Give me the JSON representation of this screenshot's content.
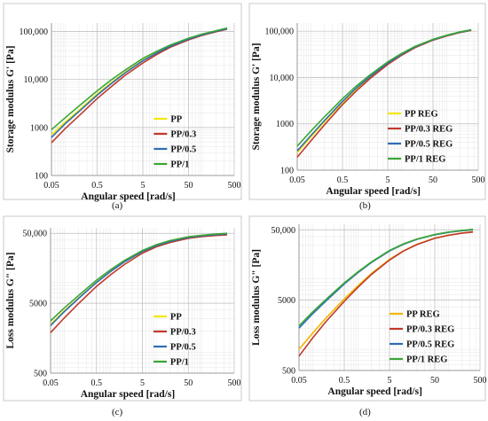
{
  "chart_data": [
    {
      "panel": "(a)",
      "type": "line",
      "xlabel": "Angular speed [rad/s]",
      "ylabel": "Storage modulus G' [Pa]",
      "x_scale": "log",
      "y_scale": "log",
      "xlim": [
        0.05,
        500
      ],
      "ylim": [
        100,
        150000
      ],
      "xticks": [
        "0.05",
        "0.5",
        "5",
        "50",
        "500"
      ],
      "yticks": [
        "100",
        "1000",
        "10,000",
        "100,000"
      ],
      "legend_position": "bottom-right",
      "grid": true,
      "series": [
        {
          "name": "PP",
          "color": "#f2e600",
          "x": [
            0.05,
            0.1,
            0.2,
            0.5,
            1,
            2,
            5,
            10,
            20,
            50,
            100,
            200,
            350
          ],
          "y": [
            700,
            1300,
            2300,
            5000,
            8500,
            14000,
            25000,
            36000,
            50000,
            70000,
            86000,
            102000,
            115000
          ]
        },
        {
          "name": "PP/0.3",
          "color": "#c0392b",
          "x": [
            0.05,
            0.1,
            0.2,
            0.5,
            1,
            2,
            5,
            10,
            20,
            50,
            100,
            200,
            350
          ],
          "y": [
            480,
            950,
            1750,
            4000,
            7000,
            12000,
            22000,
            33000,
            47000,
            67000,
            83000,
            99000,
            112000
          ]
        },
        {
          "name": "PP/0.5",
          "color": "#2e6db4",
          "x": [
            0.05,
            0.1,
            0.2,
            0.5,
            1,
            2,
            5,
            10,
            20,
            50,
            100,
            200,
            350
          ],
          "y": [
            620,
            1200,
            2150,
            4700,
            8100,
            13500,
            24500,
            35500,
            49500,
            69500,
            85500,
            101500,
            114000
          ]
        },
        {
          "name": "PP/1",
          "color": "#3aa635",
          "x": [
            0.05,
            0.1,
            0.2,
            0.5,
            1,
            2,
            5,
            10,
            20,
            50,
            100,
            200,
            350
          ],
          "y": [
            900,
            1600,
            2800,
            5800,
            9700,
            15500,
            27500,
            38500,
            52500,
            72500,
            88500,
            104000,
            118000
          ]
        }
      ]
    },
    {
      "panel": "(b)",
      "type": "line",
      "xlabel": "Angular speed [rad/s]",
      "ylabel": "Storage modulus G' [Pa]",
      "x_scale": "log",
      "y_scale": "log",
      "xlim": [
        0.05,
        500
      ],
      "ylim": [
        100,
        150000
      ],
      "xticks": [
        "0.05",
        "0.5",
        "5",
        "50",
        "500"
      ],
      "yticks": [
        "100",
        "1000",
        "10,000",
        "100,000"
      ],
      "legend_position": "bottom-right",
      "grid": true,
      "series": [
        {
          "name": "PP REG",
          "color": "#f2e600",
          "x": [
            0.05,
            0.1,
            0.2,
            0.5,
            1,
            2,
            5,
            10,
            20,
            50,
            100,
            200,
            350
          ],
          "y": [
            240,
            520,
            1100,
            2900,
            5600,
            10000,
            20000,
            31000,
            45000,
            65000,
            80000,
            95000,
            105000
          ]
        },
        {
          "name": "PP/0.3 REG",
          "color": "#c0392b",
          "x": [
            0.05,
            0.1,
            0.2,
            0.5,
            1,
            2,
            5,
            10,
            20,
            50,
            100,
            200,
            350
          ],
          "y": [
            190,
            430,
            950,
            2600,
            5100,
            9400,
            19200,
            30000,
            44000,
            64000,
            79000,
            94000,
            104000
          ]
        },
        {
          "name": "PP/0.5 REG",
          "color": "#2e6db4",
          "x": [
            0.05,
            0.1,
            0.2,
            0.5,
            1,
            2,
            5,
            10,
            20,
            50,
            100,
            200,
            350
          ],
          "y": [
            260,
            560,
            1180,
            3050,
            5850,
            10400,
            20600,
            31600,
            45600,
            65600,
            80600,
            95600,
            106000
          ]
        },
        {
          "name": "PP/1 REG",
          "color": "#3aa635",
          "x": [
            0.05,
            0.1,
            0.2,
            0.5,
            1,
            2,
            5,
            10,
            20,
            50,
            100,
            200,
            350
          ],
          "y": [
            330,
            700,
            1420,
            3500,
            6500,
            11300,
            21800,
            32800,
            46800,
            66800,
            81800,
            96800,
            108000
          ]
        }
      ]
    },
    {
      "panel": "(c)",
      "type": "line",
      "xlabel": "Angular speed [rad/s]",
      "ylabel": "Loss modulus G\" [Pa]",
      "x_scale": "log",
      "y_scale": "log",
      "xlim": [
        0.05,
        500
      ],
      "ylim": [
        500,
        60000
      ],
      "xticks": [
        "0.05",
        "0.5",
        "5",
        "50",
        "500"
      ],
      "yticks": [
        "500",
        "5000",
        "50,000"
      ],
      "legend_position": "bottom-right",
      "grid": true,
      "series": [
        {
          "name": "PP",
          "color": "#f2e600",
          "x": [
            0.05,
            0.1,
            0.2,
            0.5,
            1,
            2,
            5,
            10,
            20,
            50,
            100,
            200,
            350
          ],
          "y": [
            2500,
            3900,
            5900,
            10000,
            14200,
            19500,
            27500,
            33500,
            38500,
            43500,
            46000,
            47500,
            48500
          ]
        },
        {
          "name": "PP/0.3",
          "color": "#c0392b",
          "x": [
            0.05,
            0.1,
            0.2,
            0.5,
            1,
            2,
            5,
            10,
            20,
            50,
            100,
            200,
            350
          ],
          "y": [
            1900,
            3100,
            4900,
            8700,
            12700,
            17800,
            26000,
            32000,
            37000,
            42500,
            45000,
            46500,
            47500
          ]
        },
        {
          "name": "PP/0.5",
          "color": "#2e6db4",
          "x": [
            0.05,
            0.1,
            0.2,
            0.5,
            1,
            2,
            5,
            10,
            20,
            50,
            100,
            200,
            350
          ],
          "y": [
            2400,
            3800,
            5800,
            9900,
            14100,
            19400,
            27400,
            33400,
            38400,
            43600,
            46200,
            47800,
            49000
          ]
        },
        {
          "name": "PP/1",
          "color": "#3aa635",
          "x": [
            0.05,
            0.1,
            0.2,
            0.5,
            1,
            2,
            5,
            10,
            20,
            50,
            100,
            200,
            350
          ],
          "y": [
            2800,
            4300,
            6400,
            10700,
            15000,
            20400,
            28400,
            34400,
            39400,
            44500,
            47000,
            48700,
            50000
          ]
        }
      ]
    },
    {
      "panel": "(d)",
      "type": "line",
      "xlabel": "Angular speed [rad/s]",
      "ylabel": "Loss modulus G\" [Pa]",
      "x_scale": "log",
      "y_scale": "log",
      "xlim": [
        0.05,
        500
      ],
      "ylim": [
        500,
        60000
      ],
      "xticks": [
        "0.05",
        "0.5",
        "5",
        "50",
        "500"
      ],
      "yticks": [
        "500",
        "5000",
        "50,000"
      ],
      "legend_position": "bottom-right",
      "grid": true,
      "series": [
        {
          "name": "PP REG",
          "color": "#f2b600",
          "x": [
            0.05,
            0.1,
            0.2,
            0.5,
            1,
            2,
            5,
            10,
            20,
            50,
            100,
            200,
            350
          ],
          "y": [
            1000,
            1700,
            2800,
            5200,
            8000,
            12000,
            19000,
            25000,
            31000,
            38000,
            42000,
            45000,
            47000
          ]
        },
        {
          "name": "PP/0.3 REG",
          "color": "#c0392b",
          "x": [
            0.05,
            0.1,
            0.2,
            0.5,
            1,
            2,
            5,
            10,
            20,
            50,
            100,
            200,
            350
          ],
          "y": [
            800,
            1450,
            2500,
            4800,
            7600,
            11600,
            18600,
            24800,
            30800,
            37800,
            41800,
            44800,
            46500
          ]
        },
        {
          "name": "PP/0.5 REG",
          "color": "#2e6db4",
          "x": [
            0.05,
            0.1,
            0.2,
            0.5,
            1,
            2,
            5,
            10,
            20,
            50,
            100,
            200,
            350
          ],
          "y": [
            2000,
            3200,
            4900,
            8500,
            12300,
            17200,
            25000,
            31000,
            36500,
            42500,
            46000,
            48500,
            50000
          ]
        },
        {
          "name": "PP/1 REG",
          "color": "#3aa635",
          "x": [
            0.05,
            0.1,
            0.2,
            0.5,
            1,
            2,
            5,
            10,
            20,
            50,
            100,
            200,
            350
          ],
          "y": [
            2150,
            3400,
            5150,
            8800,
            12650,
            17550,
            25400,
            31400,
            36900,
            43000,
            46500,
            49000,
            50800
          ]
        }
      ]
    }
  ]
}
